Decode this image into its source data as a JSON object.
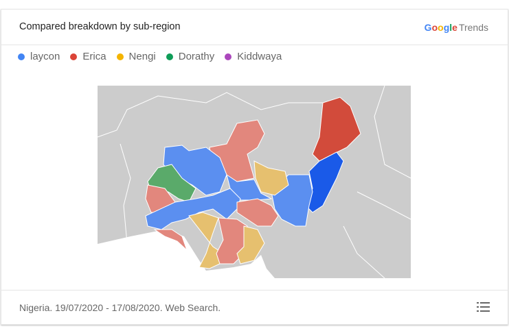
{
  "header": {
    "title": "Compared breakdown by sub-region",
    "brand_google": "Google",
    "brand_trends": "Trends"
  },
  "legend": [
    {
      "label": "laycon",
      "color": "#4285f4"
    },
    {
      "label": "Erica",
      "color": "#db4437"
    },
    {
      "label": "Nengi",
      "color": "#f4b400"
    },
    {
      "label": "Dorathy",
      "color": "#0f9d58"
    },
    {
      "label": "Kiddwaya",
      "color": "#ab47bc"
    }
  ],
  "map": {
    "country": "Nigeria",
    "background_color": "#cccccc",
    "shade_colors": {
      "laycon_strong": "#1a5ae8",
      "laycon": "#5b8ff0",
      "Erica_strong": "#d24b3b",
      "Erica": "#e2877d",
      "Nengi": "#e6c06f",
      "Dorathy": "#5aaa6a"
    }
  },
  "footer": {
    "text": "Nigeria. 19/07/2020 - 17/08/2020. Web Search.",
    "icon": "list-icon"
  }
}
